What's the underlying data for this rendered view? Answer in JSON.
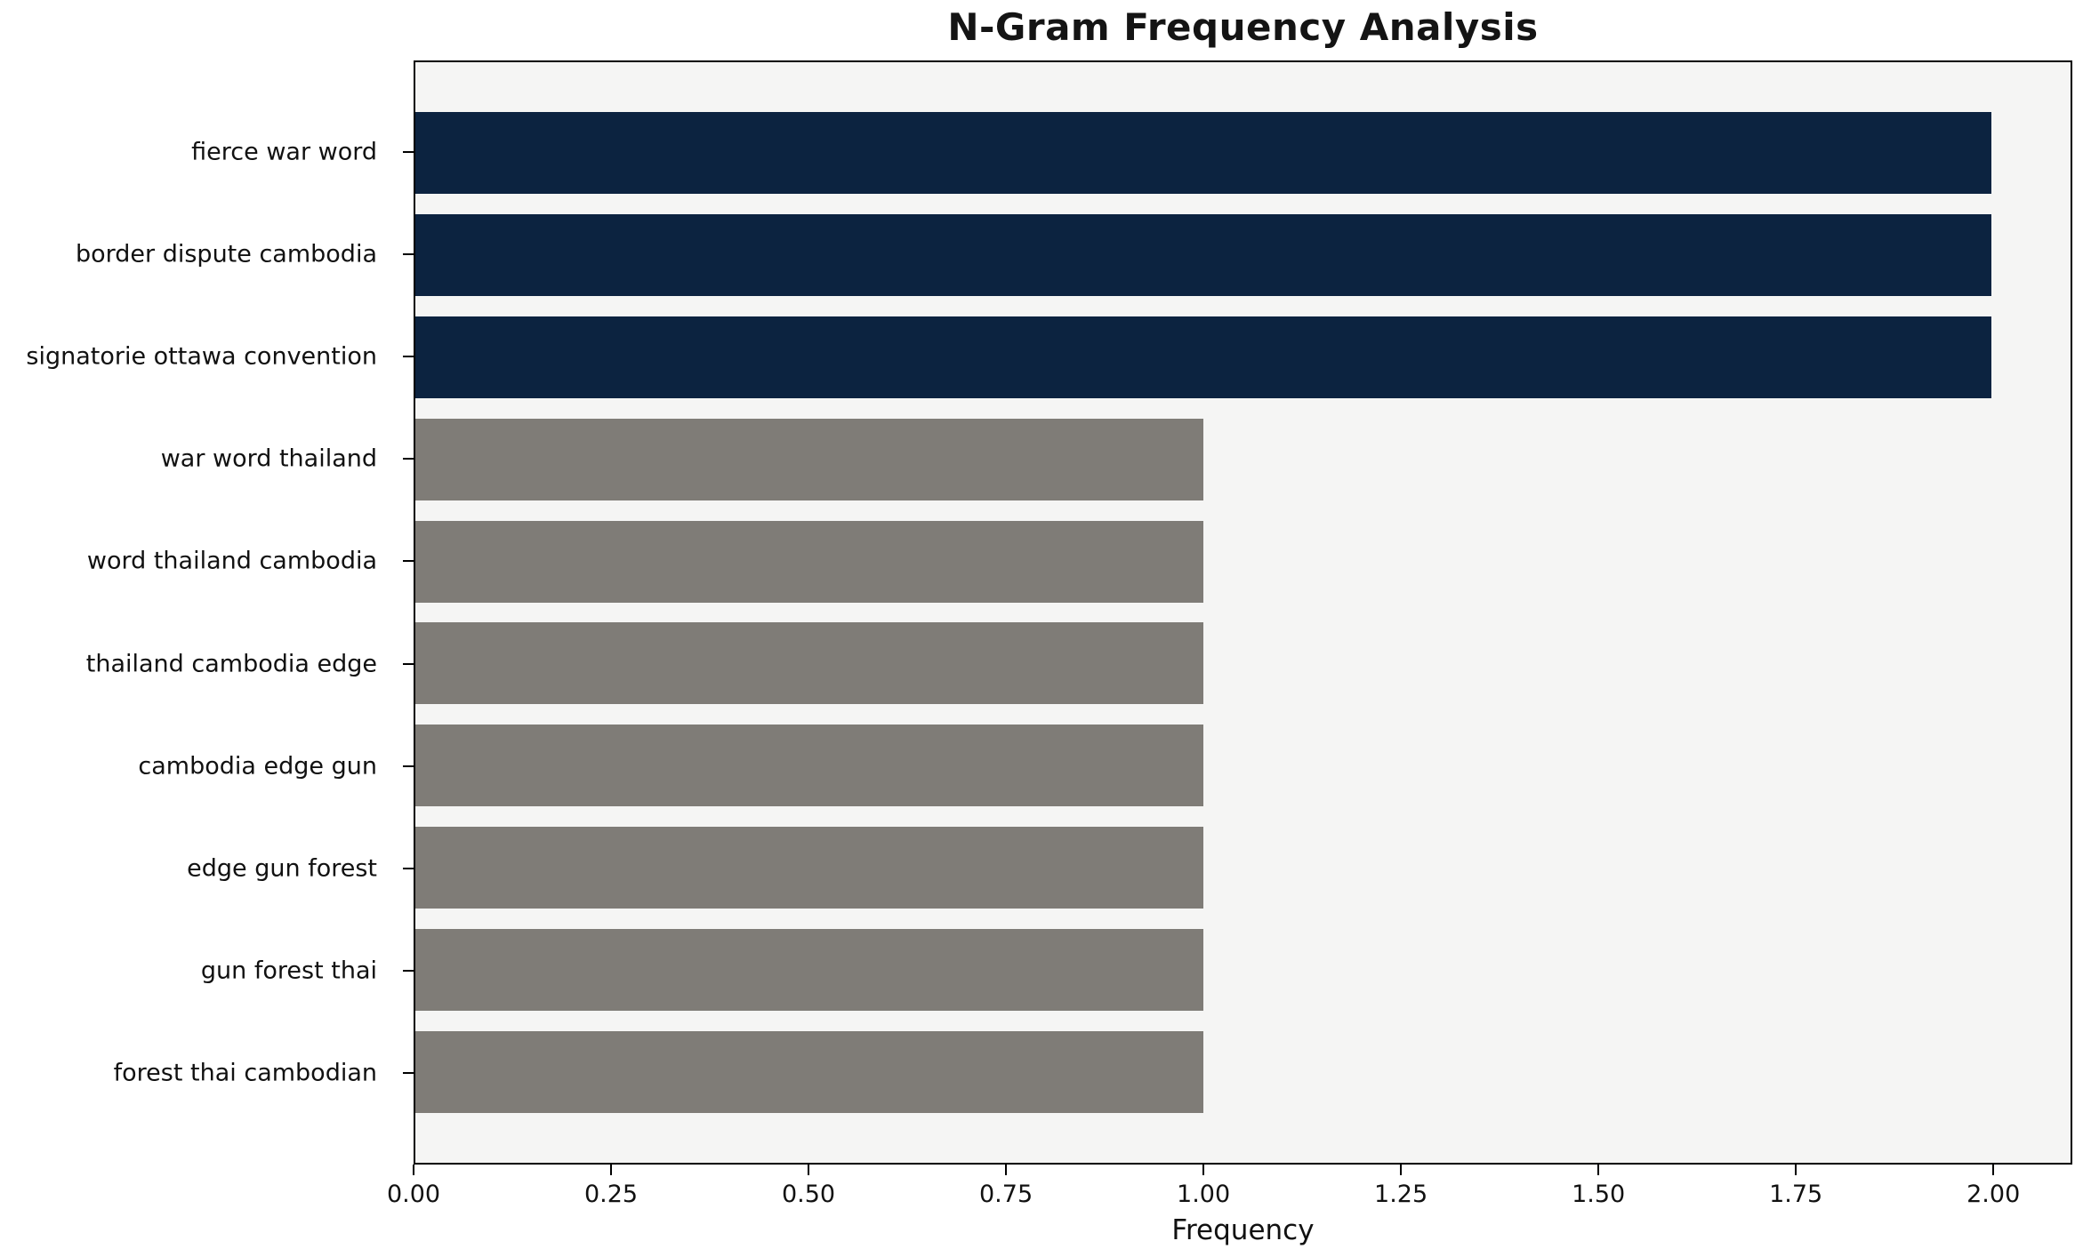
{
  "chart_data": {
    "type": "bar",
    "orientation": "horizontal",
    "title": "N-Gram Frequency Analysis",
    "xlabel": "Frequency",
    "ylabel": "",
    "categories": [
      "fierce war word",
      "border dispute cambodia",
      "signatorie ottawa convention",
      "war word thailand",
      "word thailand cambodia",
      "thailand cambodia edge",
      "cambodia edge gun",
      "edge gun forest",
      "gun forest thai",
      "forest thai cambodian"
    ],
    "values": [
      2,
      2,
      2,
      1,
      1,
      1,
      1,
      1,
      1,
      1
    ],
    "bar_colors": [
      "#0c2340",
      "#0c2340",
      "#0c2340",
      "#7f7c77",
      "#7f7c77",
      "#7f7c77",
      "#7f7c77",
      "#7f7c77",
      "#7f7c77",
      "#7f7c77"
    ],
    "xlim": [
      0,
      2.1
    ],
    "xticks": [
      {
        "label": "0.00",
        "value": 0.0
      },
      {
        "label": "0.25",
        "value": 0.25
      },
      {
        "label": "0.50",
        "value": 0.5
      },
      {
        "label": "0.75",
        "value": 0.75
      },
      {
        "label": "1.00",
        "value": 1.0
      },
      {
        "label": "1.25",
        "value": 1.25
      },
      {
        "label": "1.50",
        "value": 1.5
      },
      {
        "label": "1.75",
        "value": 1.75
      },
      {
        "label": "2.00",
        "value": 2.0
      }
    ],
    "grid": "off",
    "legend": "none",
    "colors": {
      "highlight": "#0c2340",
      "default_bar": "#7f7c77",
      "plot_background": "#f5f5f4",
      "axis": "#000000",
      "figure_background": "#ffffff"
    }
  }
}
